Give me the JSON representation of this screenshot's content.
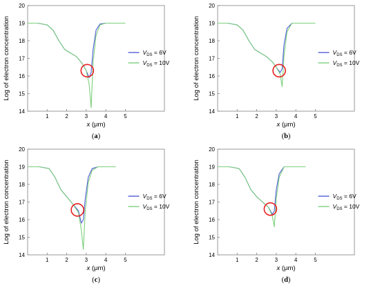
{
  "chart_data": [
    {
      "type": "line",
      "caption": "(a)",
      "xlabel": "x",
      "xlabel_unit": "(μm)",
      "ylabel": "Log of electron concentration",
      "xlim": [
        0,
        7
      ],
      "ylim": [
        14,
        20
      ],
      "xticks": [
        1,
        2,
        3,
        4,
        5
      ],
      "yticks": [
        14,
        15,
        16,
        17,
        18,
        19,
        20
      ],
      "legend": "right",
      "series": [
        {
          "name": "V_DS = 6V",
          "label_main": "V",
          "label_sub": "DS",
          "label_rest": " = 6V",
          "color": "#4f5bd5",
          "points": [
            [
              0,
              19
            ],
            [
              0.5,
              19
            ],
            [
              1,
              18.9
            ],
            [
              1.3,
              18.6
            ],
            [
              1.6,
              18.0
            ],
            [
              1.9,
              17.5
            ],
            [
              2.2,
              17.3
            ],
            [
              2.5,
              17.1
            ],
            [
              2.8,
              16.7
            ],
            [
              3.0,
              16.3
            ],
            [
              3.15,
              15.9
            ],
            [
              3.25,
              16.2
            ],
            [
              3.35,
              17.5
            ],
            [
              3.5,
              18.6
            ],
            [
              3.7,
              18.95
            ],
            [
              4.0,
              19
            ],
            [
              5.0,
              19
            ]
          ]
        },
        {
          "name": "V_DS = 10V",
          "label_main": "V",
          "label_sub": "DS",
          "label_rest": " = 10V",
          "color": "#7ccf7c",
          "points": [
            [
              0,
              19
            ],
            [
              0.5,
              19
            ],
            [
              1,
              18.9
            ],
            [
              1.3,
              18.6
            ],
            [
              1.6,
              18.0
            ],
            [
              1.9,
              17.5
            ],
            [
              2.2,
              17.3
            ],
            [
              2.5,
              17.1
            ],
            [
              2.8,
              16.7
            ],
            [
              3.0,
              16.3
            ],
            [
              3.15,
              15.5
            ],
            [
              3.25,
              14.2
            ],
            [
              3.35,
              16.8
            ],
            [
              3.5,
              18.3
            ],
            [
              3.7,
              18.9
            ],
            [
              4.0,
              19
            ],
            [
              5.0,
              19
            ]
          ]
        }
      ],
      "highlight_circle": {
        "x": 3.05,
        "y": 16.3,
        "color": "#e82020"
      }
    },
    {
      "type": "line",
      "caption": "(b)",
      "xlabel": "x",
      "xlabel_unit": "(μm)",
      "ylabel": "Log of electron concentration",
      "xlim": [
        0,
        7
      ],
      "ylim": [
        14,
        20
      ],
      "xticks": [
        1,
        2,
        3,
        4,
        5
      ],
      "yticks": [
        14,
        15,
        16,
        17,
        18,
        19,
        20
      ],
      "legend": "right",
      "series": [
        {
          "name": "V_DS = 6V",
          "label_main": "V",
          "label_sub": "DS",
          "label_rest": " = 6V",
          "color": "#4f5bd5",
          "points": [
            [
              0,
              19
            ],
            [
              0.5,
              19
            ],
            [
              1,
              18.9
            ],
            [
              1.3,
              18.6
            ],
            [
              1.6,
              18.0
            ],
            [
              1.9,
              17.5
            ],
            [
              2.2,
              17.3
            ],
            [
              2.5,
              17.1
            ],
            [
              2.8,
              16.8
            ],
            [
              3.0,
              16.5
            ],
            [
              3.2,
              16.2
            ],
            [
              3.3,
              16.4
            ],
            [
              3.4,
              17.8
            ],
            [
              3.55,
              18.7
            ],
            [
              3.8,
              19
            ],
            [
              5.0,
              19
            ]
          ]
        },
        {
          "name": "V_DS = 10V",
          "label_main": "V",
          "label_sub": "DS",
          "label_rest": " = 10V",
          "color": "#7ccf7c",
          "points": [
            [
              0,
              19
            ],
            [
              0.5,
              19
            ],
            [
              1,
              18.9
            ],
            [
              1.3,
              18.6
            ],
            [
              1.6,
              18.0
            ],
            [
              1.9,
              17.5
            ],
            [
              2.2,
              17.3
            ],
            [
              2.5,
              17.1
            ],
            [
              2.8,
              16.8
            ],
            [
              3.0,
              16.5
            ],
            [
              3.2,
              16.1
            ],
            [
              3.3,
              15.4
            ],
            [
              3.4,
              17.2
            ],
            [
              3.55,
              18.5
            ],
            [
              3.8,
              19
            ],
            [
              5.0,
              19
            ]
          ]
        }
      ],
      "highlight_circle": {
        "x": 3.15,
        "y": 16.3,
        "color": "#e82020"
      }
    },
    {
      "type": "line",
      "caption": "(c)",
      "xlabel": "x",
      "xlabel_unit": "(μm)",
      "ylabel": "Log of electron concentration",
      "xlim": [
        0,
        7
      ],
      "ylim": [
        14,
        20
      ],
      "xticks": [
        1,
        2,
        3,
        4,
        5
      ],
      "yticks": [
        14,
        15,
        16,
        17,
        18,
        19,
        20
      ],
      "legend": "right",
      "series": [
        {
          "name": "V_DS = 6V",
          "label_main": "V",
          "label_sub": "DS",
          "label_rest": " = 6V",
          "color": "#4f5bd5",
          "points": [
            [
              0,
              19
            ],
            [
              0.6,
              19
            ],
            [
              1.1,
              18.9
            ],
            [
              1.4,
              18.4
            ],
            [
              1.7,
              17.7
            ],
            [
              2.0,
              17.3
            ],
            [
              2.3,
              16.9
            ],
            [
              2.6,
              16.5
            ],
            [
              2.75,
              15.8
            ],
            [
              2.85,
              16.0
            ],
            [
              2.95,
              17.2
            ],
            [
              3.1,
              18.4
            ],
            [
              3.3,
              18.9
            ],
            [
              3.6,
              19
            ],
            [
              4.5,
              19
            ]
          ]
        },
        {
          "name": "V_DS = 10V",
          "label_main": "V",
          "label_sub": "DS",
          "label_rest": " = 10V",
          "color": "#7ccf7c",
          "points": [
            [
              0,
              19
            ],
            [
              0.6,
              19
            ],
            [
              1.1,
              18.9
            ],
            [
              1.4,
              18.4
            ],
            [
              1.7,
              17.7
            ],
            [
              2.0,
              17.3
            ],
            [
              2.3,
              16.9
            ],
            [
              2.6,
              16.4
            ],
            [
              2.75,
              15.4
            ],
            [
              2.85,
              14.3
            ],
            [
              2.95,
              16.5
            ],
            [
              3.1,
              18.1
            ],
            [
              3.3,
              18.8
            ],
            [
              3.6,
              19
            ],
            [
              4.5,
              19
            ]
          ]
        }
      ],
      "highlight_circle": {
        "x": 2.55,
        "y": 16.55,
        "color": "#e82020"
      }
    },
    {
      "type": "line",
      "caption": "(d)",
      "xlabel": "x",
      "xlabel_unit": "(μm)",
      "ylabel": "Log of electron concentration",
      "xlim": [
        0,
        7
      ],
      "ylim": [
        14,
        20
      ],
      "xticks": [
        1,
        2,
        3,
        4,
        5
      ],
      "yticks": [
        14,
        15,
        16,
        17,
        18,
        19,
        20
      ],
      "legend": "right",
      "series": [
        {
          "name": "V_DS = 6V",
          "label_main": "V",
          "label_sub": "DS",
          "label_rest": " = 6V",
          "color": "#4f5bd5",
          "points": [
            [
              0,
              19
            ],
            [
              0.6,
              19
            ],
            [
              1.1,
              18.9
            ],
            [
              1.4,
              18.4
            ],
            [
              1.7,
              17.7
            ],
            [
              2.0,
              17.3
            ],
            [
              2.3,
              17.0
            ],
            [
              2.6,
              16.7
            ],
            [
              2.8,
              16.3
            ],
            [
              2.9,
              16.5
            ],
            [
              3.0,
              17.7
            ],
            [
              3.15,
              18.6
            ],
            [
              3.4,
              19
            ],
            [
              4.5,
              19
            ]
          ]
        },
        {
          "name": "V_DS = 10V",
          "label_main": "V",
          "label_sub": "DS",
          "label_rest": " = 10V",
          "color": "#7ccf7c",
          "points": [
            [
              0,
              19
            ],
            [
              0.6,
              19
            ],
            [
              1.1,
              18.9
            ],
            [
              1.4,
              18.4
            ],
            [
              1.7,
              17.7
            ],
            [
              2.0,
              17.3
            ],
            [
              2.3,
              17.0
            ],
            [
              2.6,
              16.7
            ],
            [
              2.8,
              16.2
            ],
            [
              2.9,
              15.6
            ],
            [
              3.0,
              17.2
            ],
            [
              3.15,
              18.4
            ],
            [
              3.4,
              19
            ],
            [
              4.5,
              19
            ]
          ]
        }
      ],
      "highlight_circle": {
        "x": 2.7,
        "y": 16.6,
        "color": "#e82020"
      }
    }
  ]
}
